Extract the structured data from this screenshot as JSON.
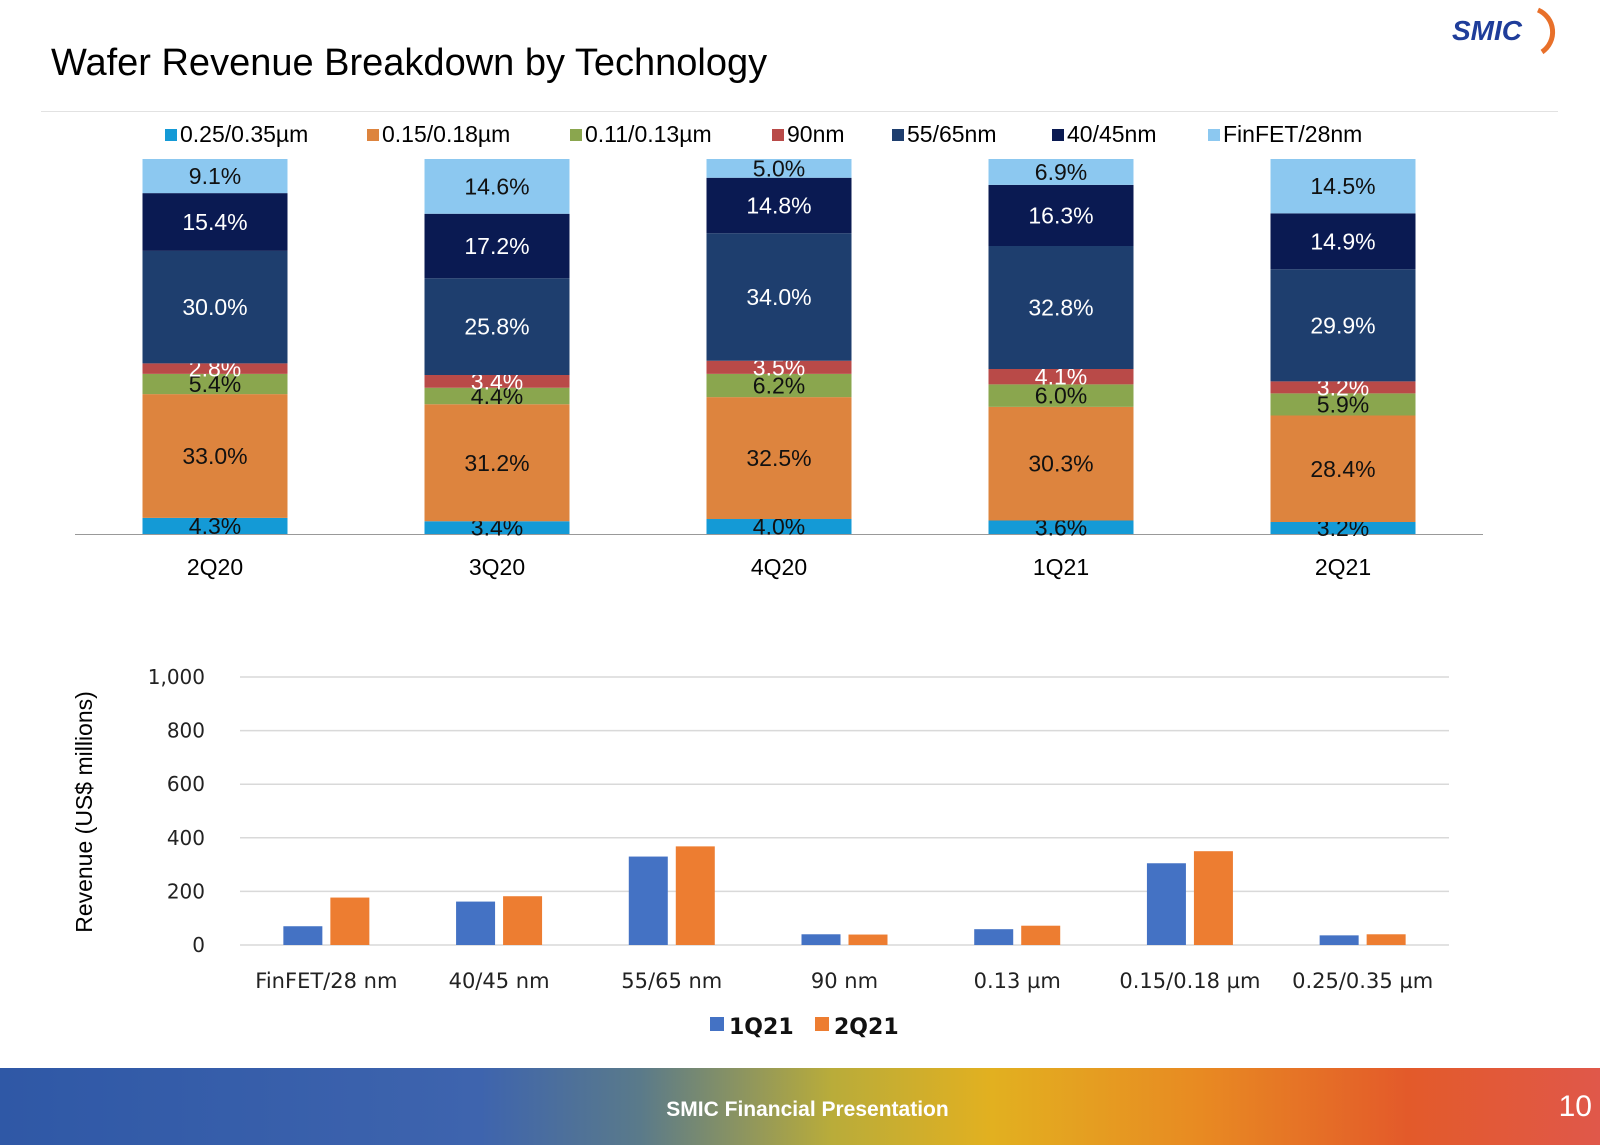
{
  "header": {
    "title": "Wafer Revenue Breakdown by Technology",
    "logo_text": "SMIC"
  },
  "footer": {
    "text": "SMIC Financial Presentation",
    "page_number": "10"
  },
  "colors": {
    "0.25/0.35µm": "#149ad6",
    "0.15/0.18µm": "#dd843e",
    "0.11/0.13µm": "#8aa64e",
    "90nm": "#b94a48",
    "55/65nm": "#1e3e6e",
    "40/45nm": "#0a1a52",
    "FinFET/28nm": "#8cc8f0",
    "1Q21": "#4472c4",
    "2Q21": "#ed7d31"
  },
  "chart_data": [
    {
      "type": "bar",
      "stacked": true,
      "categories": [
        "2Q20",
        "3Q20",
        "4Q20",
        "1Q21",
        "2Q21"
      ],
      "legend_position": "top",
      "series": [
        {
          "name": "0.25/0.35µm",
          "values": [
            4.3,
            3.4,
            4.0,
            3.6,
            3.2
          ],
          "labels": [
            "4.3%",
            "3.4%",
            "4.0%",
            "3.6%",
            "3.2%"
          ]
        },
        {
          "name": "0.15/0.18µm",
          "values": [
            33.0,
            31.2,
            32.5,
            30.3,
            28.4
          ],
          "labels": [
            "33.0%",
            "31.2%",
            "32.5%",
            "30.3%",
            "28.4%"
          ]
        },
        {
          "name": "0.11/0.13µm",
          "values": [
            5.4,
            4.4,
            6.2,
            6.0,
            5.9
          ],
          "labels": [
            "5.4%",
            "4.4%",
            "6.2%",
            "6.0%",
            "5.9%"
          ]
        },
        {
          "name": "90nm",
          "values": [
            2.8,
            3.4,
            3.5,
            4.1,
            3.2
          ],
          "labels": [
            "2.8%",
            "3.4%",
            "3.5%",
            "4.1%",
            "3.2%"
          ]
        },
        {
          "name": "55/65nm",
          "values": [
            30.0,
            25.8,
            34.0,
            32.8,
            29.9
          ],
          "labels": [
            "30.0%",
            "25.8%",
            "34.0%",
            "32.8%",
            "29.9%"
          ]
        },
        {
          "name": "40/45nm",
          "values": [
            15.4,
            17.2,
            14.8,
            16.3,
            14.9
          ],
          "labels": [
            "15.4%",
            "17.2%",
            "14.8%",
            "16.3%",
            "14.9%"
          ]
        },
        {
          "name": "FinFET/28nm",
          "values": [
            9.1,
            14.6,
            5.0,
            6.9,
            14.5
          ],
          "labels": [
            "9.1%",
            "14.6%",
            "5.0%",
            "6.9%",
            "14.5%"
          ]
        }
      ],
      "ylim": [
        0,
        100
      ]
    },
    {
      "type": "bar",
      "categories": [
        "FinFET/28 nm",
        "40/45 nm",
        "55/65 nm",
        "90 nm",
        "0.13 µm",
        "0.15/0.18 µm",
        "0.25/0.35 µm"
      ],
      "series": [
        {
          "name": "1Q21",
          "values": [
            70,
            162,
            330,
            40,
            59,
            305,
            36
          ]
        },
        {
          "name": "2Q21",
          "values": [
            177,
            182,
            368,
            39,
            72,
            350,
            40
          ]
        }
      ],
      "ylabel": "Revenue (US$  millions)",
      "ylim": [
        0,
        1000
      ],
      "yticks": [
        "0",
        "200",
        "400",
        "600",
        "800",
        "1,000"
      ],
      "grid": true,
      "legend_position": "bottom"
    }
  ]
}
